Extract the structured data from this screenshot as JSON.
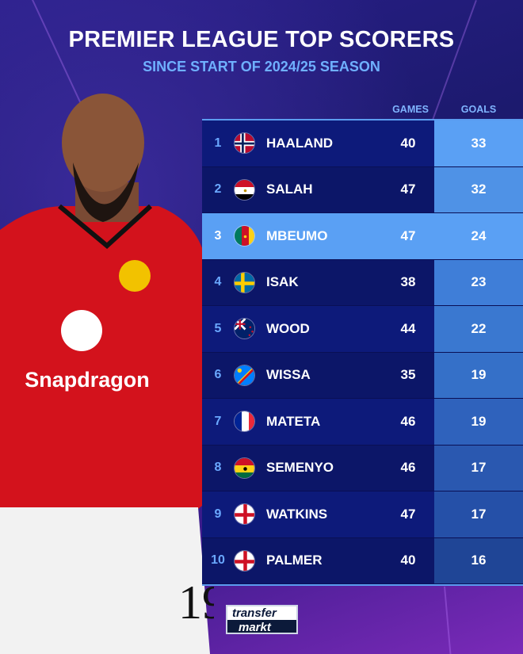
{
  "header": {
    "title": "PREMIER LEAGUE TOP SCORERS",
    "subtitle": "SINCE START OF 2024/25 SEASON"
  },
  "colors": {
    "highlight": "#5aa0f4",
    "row": "#0d1a7a",
    "accent": "#6fb0ff"
  },
  "chart_data": {
    "type": "table",
    "columns": [
      "GAMES",
      "GOALS"
    ],
    "rows": [
      {
        "rank": "1",
        "flag": "norway-flag-icon",
        "name": "HAALAND",
        "games": "40",
        "goals": "33"
      },
      {
        "rank": "2",
        "flag": "egypt-flag-icon",
        "name": "SALAH",
        "games": "47",
        "goals": "32"
      },
      {
        "rank": "3",
        "flag": "cameroon-flag-icon",
        "name": "MBEUMO",
        "games": "47",
        "goals": "24",
        "highlighted": true
      },
      {
        "rank": "4",
        "flag": "sweden-flag-icon",
        "name": "ISAK",
        "games": "38",
        "goals": "23"
      },
      {
        "rank": "5",
        "flag": "new-zealand-flag-icon",
        "name": "WOOD",
        "games": "44",
        "goals": "22"
      },
      {
        "rank": "6",
        "flag": "dr-congo-flag-icon",
        "name": "WISSA",
        "games": "35",
        "goals": "19"
      },
      {
        "rank": "7",
        "flag": "france-flag-icon",
        "name": "MATETA",
        "games": "46",
        "goals": "19"
      },
      {
        "rank": "8",
        "flag": "ghana-flag-icon",
        "name": "SEMENYO",
        "games": "46",
        "goals": "17"
      },
      {
        "rank": "9",
        "flag": "england-flag-icon",
        "name": "WATKINS",
        "games": "47",
        "goals": "17"
      },
      {
        "rank": "10",
        "flag": "england-flag-icon",
        "name": "PALMER",
        "games": "40",
        "goals": "16"
      }
    ]
  },
  "player": {
    "sponsor": "Snapdragon",
    "number": "19"
  },
  "logo": {
    "line1": "transfer",
    "line2": "markt"
  }
}
